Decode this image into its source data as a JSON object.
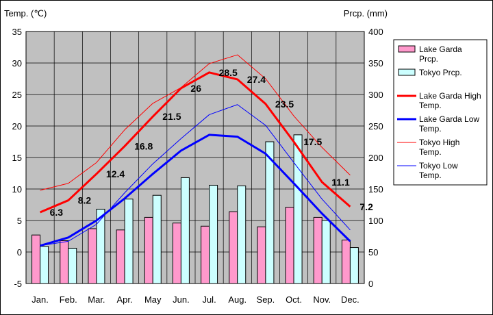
{
  "chart_data": {
    "type": "bar+line",
    "categories": [
      "Jan.",
      "Feb.",
      "Mar.",
      "Apr.",
      "May",
      "Jun.",
      "Jul.",
      "Aug.",
      "Sep.",
      "Oct.",
      "Nov.",
      "Dec."
    ],
    "y_left": {
      "label": "Temp. (℃)",
      "lim": [
        -5,
        35
      ],
      "ticks": [
        -5,
        0,
        5,
        10,
        15,
        20,
        25,
        30,
        35
      ]
    },
    "y_right": {
      "label": "Prcp. (mm)",
      "lim": [
        0,
        400
      ],
      "ticks": [
        0,
        50,
        100,
        150,
        200,
        250,
        300,
        350,
        400
      ]
    },
    "grid": true,
    "legend_position": "right",
    "plot_background": "#c0c0c0",
    "series": [
      {
        "name": "Lake Garda Prcp.",
        "kind": "bar",
        "axis": "right",
        "color": "#ff99cc",
        "values": [
          77,
          68,
          87,
          85,
          105,
          96,
          91,
          114,
          90,
          121,
          105,
          69
        ]
      },
      {
        "name": "Tokyo Prcp.",
        "kind": "bar",
        "axis": "right",
        "color": "#ccffff",
        "values": [
          59,
          56,
          118,
          134,
          140,
          168,
          156,
          155,
          225,
          236,
          100,
          57
        ]
      },
      {
        "name": "Lake Garda High Temp.",
        "kind": "line",
        "axis": "left",
        "color": "#ff0000",
        "width": 3,
        "values": [
          6.3,
          8.2,
          12.4,
          16.8,
          21.5,
          26,
          28.5,
          27.4,
          23.5,
          17.5,
          11.1,
          7.2
        ],
        "labels": [
          "6.3",
          "8.2",
          "12.4",
          "16.8",
          "21.5",
          "26",
          "28.5",
          "27.4",
          "23.5",
          "17.5",
          "11.1",
          "7.2"
        ]
      },
      {
        "name": "Lake Garda Low Temp.",
        "kind": "line",
        "axis": "left",
        "color": "#0000ff",
        "width": 3,
        "values": [
          1,
          2.3,
          5,
          8.5,
          12.4,
          16.1,
          18.6,
          18.3,
          15.6,
          10.9,
          6.1,
          1.7
        ]
      },
      {
        "name": "Tokyo High Temp.",
        "kind": "line",
        "axis": "left",
        "color": "#ff0000",
        "width": 1,
        "values": [
          9.8,
          10.9,
          14.2,
          19.4,
          23.6,
          26.1,
          29.9,
          31.3,
          27.5,
          21.6,
          16.6,
          12.2
        ]
      },
      {
        "name": "Tokyo Low Temp.",
        "kind": "line",
        "axis": "left",
        "color": "#0000ff",
        "width": 1,
        "values": [
          1,
          1.7,
          4.4,
          9.4,
          14,
          18,
          21.8,
          23.4,
          20.1,
          14.2,
          8.4,
          3.5
        ]
      }
    ]
  }
}
